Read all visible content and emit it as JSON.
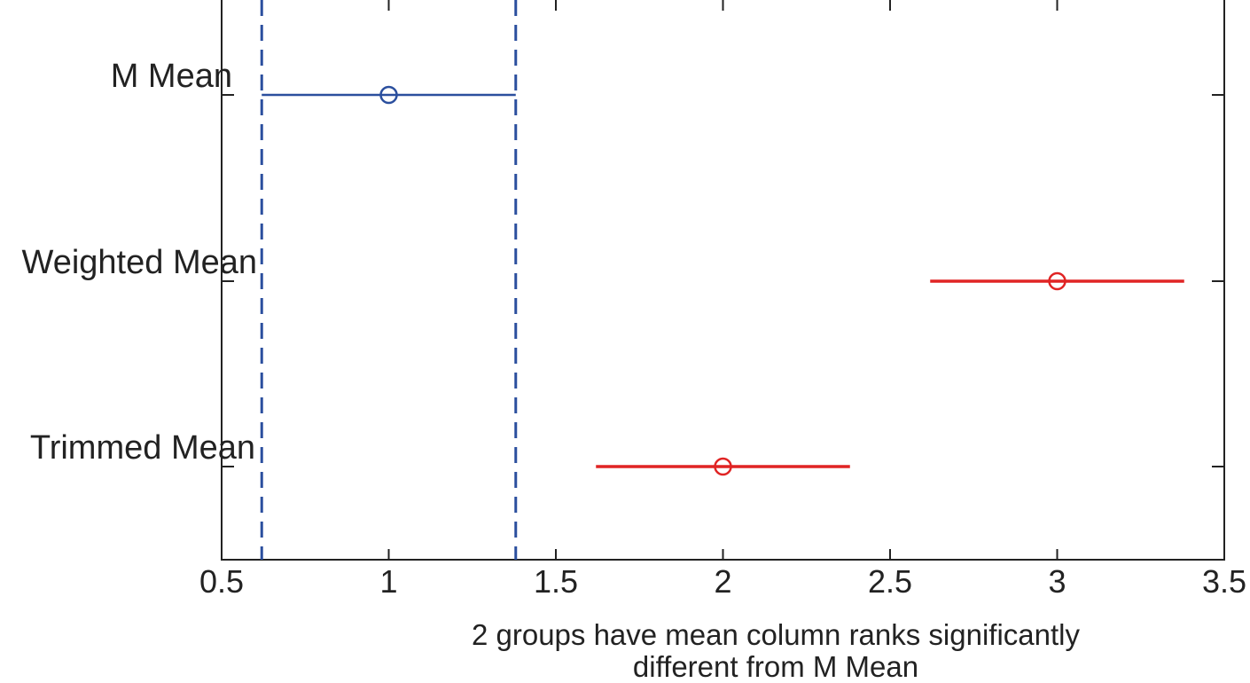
{
  "chart_data": {
    "type": "multiple-comparison",
    "groups": [
      {
        "name": "M Mean",
        "mean": 1.0,
        "lower": 0.62,
        "upper": 1.38,
        "color": "#2b4f9e"
      },
      {
        "name": "Weighted Mean",
        "mean": 3.0,
        "lower": 2.62,
        "upper": 3.38,
        "color": "#e02424"
      },
      {
        "name": "Trimmed Mean",
        "mean": 2.0,
        "lower": 1.62,
        "upper": 2.38,
        "color": "#e02424"
      }
    ],
    "reference_lines": [
      0.62,
      1.38
    ],
    "reference_color": "#2b4f9e",
    "xlim": [
      0.5,
      3.5
    ],
    "xticks": [
      "0.5",
      "1",
      "1.5",
      "2",
      "2.5",
      "3",
      "3.5"
    ],
    "xlabel_line1": "2 groups have mean column ranks significantly",
    "xlabel_line2": "different from M Mean",
    "grid": false
  }
}
